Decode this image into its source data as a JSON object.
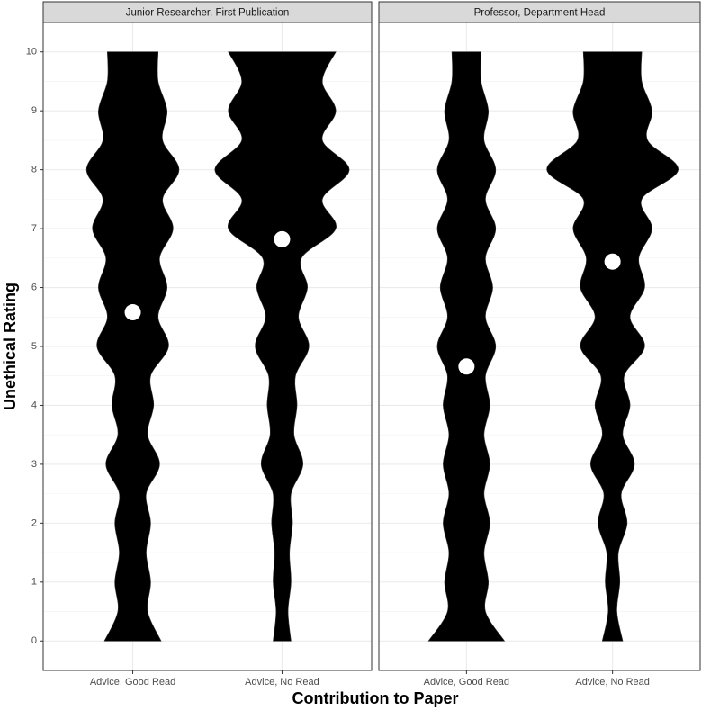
{
  "chart_data": [
    {
      "type": "violin",
      "title": "Junior Researcher, First Publication",
      "ylabel": "Unethical Rating",
      "xlabel": "Contribution to Paper",
      "categories": [
        "Advice, Good Read",
        "Advice, No Read"
      ],
      "xlim": [
        0.4,
        2.6
      ],
      "ylim": [
        -0.5,
        10.5
      ],
      "yticks": [
        0,
        1,
        2,
        3,
        4,
        5,
        6,
        7,
        8,
        9,
        10
      ],
      "grid": true,
      "density_y": [
        0,
        0.5,
        1,
        1.5,
        2,
        2.5,
        3,
        3.5,
        4,
        4.5,
        5,
        5.5,
        6,
        6.5,
        7,
        7.5,
        8,
        8.5,
        9,
        9.5,
        10
      ],
      "half_widths": [
        [
          0.19,
          0.1,
          0.12,
          0.09,
          0.12,
          0.09,
          0.18,
          0.1,
          0.14,
          0.12,
          0.24,
          0.17,
          0.23,
          0.18,
          0.27,
          0.2,
          0.31,
          0.2,
          0.23,
          0.17,
          0.17
        ],
        [
          0.06,
          0.04,
          0.06,
          0.05,
          0.07,
          0.06,
          0.14,
          0.08,
          0.1,
          0.09,
          0.18,
          0.11,
          0.17,
          0.13,
          0.36,
          0.27,
          0.45,
          0.27,
          0.36,
          0.27,
          0.36
        ]
      ],
      "means": [
        5.58,
        6.82
      ],
      "violin_color": "#000000",
      "mean_color": "#ffffff"
    },
    {
      "type": "violin",
      "title": "Professor, Department Head",
      "categories": [
        "Advice, Good Read",
        "Advice, No Read"
      ],
      "xlim": [
        0.4,
        2.6
      ],
      "ylim": [
        -0.5,
        10.5
      ],
      "yticks": [
        0,
        1,
        2,
        3,
        4,
        5,
        6,
        7,
        8,
        9,
        10
      ],
      "grid": true,
      "density_y": [
        0,
        0.5,
        1,
        1.5,
        2,
        2.5,
        3,
        3.5,
        4,
        4.5,
        5,
        5.5,
        6,
        6.5,
        7,
        7.5,
        8,
        8.5,
        9,
        9.5,
        10
      ],
      "half_widths": [
        [
          0.26,
          0.13,
          0.15,
          0.12,
          0.16,
          0.12,
          0.16,
          0.12,
          0.16,
          0.13,
          0.2,
          0.13,
          0.18,
          0.13,
          0.2,
          0.13,
          0.2,
          0.12,
          0.15,
          0.1,
          0.1
        ],
        [
          0.07,
          0.03,
          0.05,
          0.04,
          0.1,
          0.06,
          0.15,
          0.07,
          0.12,
          0.08,
          0.22,
          0.12,
          0.22,
          0.18,
          0.27,
          0.2,
          0.45,
          0.24,
          0.27,
          0.2,
          0.2
        ]
      ],
      "means": [
        4.66,
        6.44
      ],
      "violin_color": "#000000",
      "mean_color": "#ffffff"
    }
  ]
}
